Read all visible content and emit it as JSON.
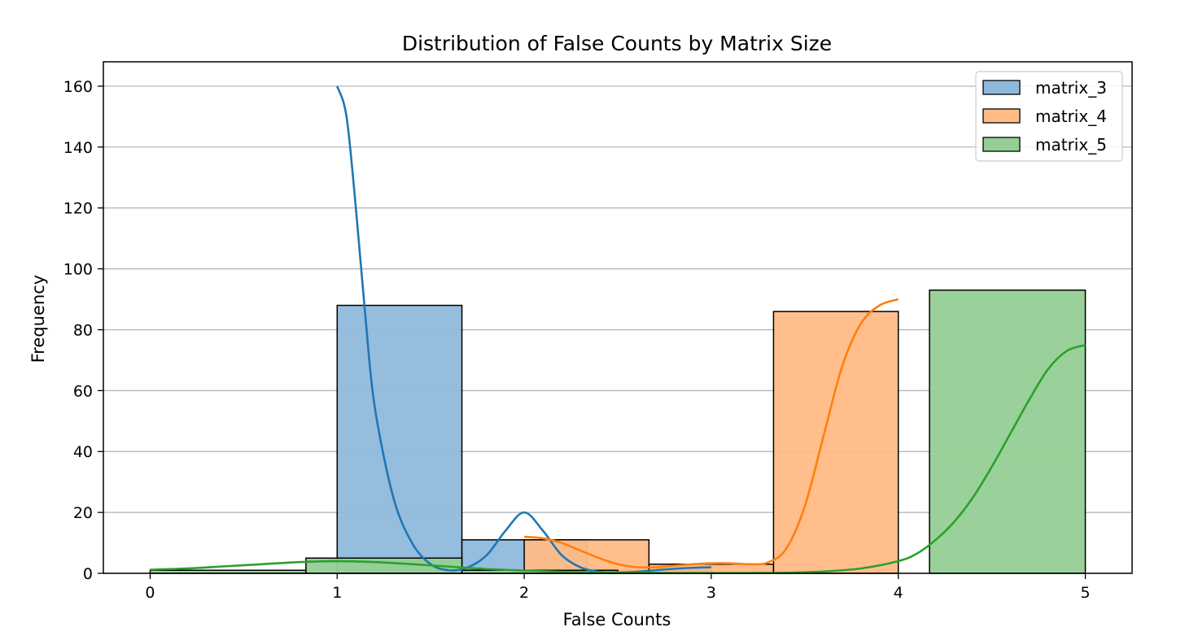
{
  "chart_data": {
    "type": "bar",
    "title": "Distribution of False Counts by Matrix Size",
    "xlabel": "False Counts",
    "ylabel": "Frequency",
    "xlim": [
      -0.25,
      5.25
    ],
    "ylim": [
      0,
      168
    ],
    "x_ticks": [
      0,
      1,
      2,
      3,
      4,
      5
    ],
    "y_ticks": [
      0,
      20,
      40,
      60,
      80,
      100,
      120,
      140,
      160
    ],
    "grid": "horizontal",
    "legend_position": "top-right",
    "series": [
      {
        "name": "matrix_3",
        "color": "#1f77b4",
        "fill": "#8fb9dc",
        "bins": [
          {
            "x0": 1.0,
            "x1": 1.667,
            "value": 88
          },
          {
            "x0": 1.667,
            "x1": 2.333,
            "value": 11
          },
          {
            "x0": 2.333,
            "x1": 3.0,
            "value": 1
          }
        ],
        "kde": {
          "x": [
            1.0,
            1.05,
            1.1,
            1.15,
            1.2,
            1.3,
            1.4,
            1.5,
            1.6,
            1.7,
            1.8,
            1.9,
            2.0,
            2.1,
            2.2,
            2.3,
            2.4,
            2.5,
            2.6,
            2.7,
            2.8,
            2.9,
            3.0
          ],
          "y": [
            160,
            150,
            120,
            85,
            55,
            25,
            10,
            3,
            1,
            2,
            6,
            14,
            20,
            14,
            6,
            2,
            0.5,
            0.3,
            0.5,
            1,
            1.5,
            1.8,
            2
          ]
        }
      },
      {
        "name": "matrix_4",
        "color": "#ff7f0e",
        "fill": "#ffbb85",
        "bins": [
          {
            "x0": 2.0,
            "x1": 2.667,
            "value": 11
          },
          {
            "x0": 2.667,
            "x1": 3.333,
            "value": 3
          },
          {
            "x0": 3.333,
            "x1": 4.0,
            "value": 86
          }
        ],
        "kde": {
          "x": [
            2.0,
            2.1,
            2.2,
            2.3,
            2.4,
            2.5,
            2.6,
            2.7,
            2.8,
            2.9,
            3.0,
            3.1,
            3.2,
            3.3,
            3.4,
            3.5,
            3.6,
            3.7,
            3.8,
            3.9,
            4.0
          ],
          "y": [
            12,
            11.5,
            10,
            7.5,
            5,
            3,
            2,
            2,
            2.5,
            3,
            3.3,
            3.3,
            3,
            3.5,
            8,
            22,
            45,
            68,
            82,
            88,
            90
          ]
        }
      },
      {
        "name": "matrix_5",
        "color": "#2ca02c",
        "fill": "#95cf95",
        "bins": [
          {
            "x0": 0.0,
            "x1": 0.833,
            "value": 1
          },
          {
            "x0": 0.833,
            "x1": 1.667,
            "value": 5
          },
          {
            "x0": 1.667,
            "x1": 2.5,
            "value": 1
          },
          {
            "x0": 4.167,
            "x1": 5.0,
            "value": 93
          }
        ],
        "kde": {
          "x": [
            0.0,
            0.2,
            0.4,
            0.6,
            0.8,
            1.0,
            1.2,
            1.4,
            1.6,
            1.8,
            2.0,
            2.2,
            2.4,
            2.6,
            2.8,
            3.0,
            3.2,
            3.4,
            3.6,
            3.8,
            4.0,
            4.1,
            4.2,
            4.3,
            4.4,
            4.5,
            4.6,
            4.7,
            4.8,
            4.9,
            5.0
          ],
          "y": [
            1.2,
            1.6,
            2.3,
            3.0,
            3.7,
            4.0,
            3.7,
            3.0,
            2.2,
            1.4,
            0.9,
            0.5,
            0.3,
            0.2,
            0.1,
            0.1,
            0.1,
            0.2,
            0.6,
            1.6,
            4.0,
            6.5,
            11,
            17,
            25,
            35,
            46,
            57,
            67,
            73,
            75
          ]
        }
      }
    ]
  }
}
